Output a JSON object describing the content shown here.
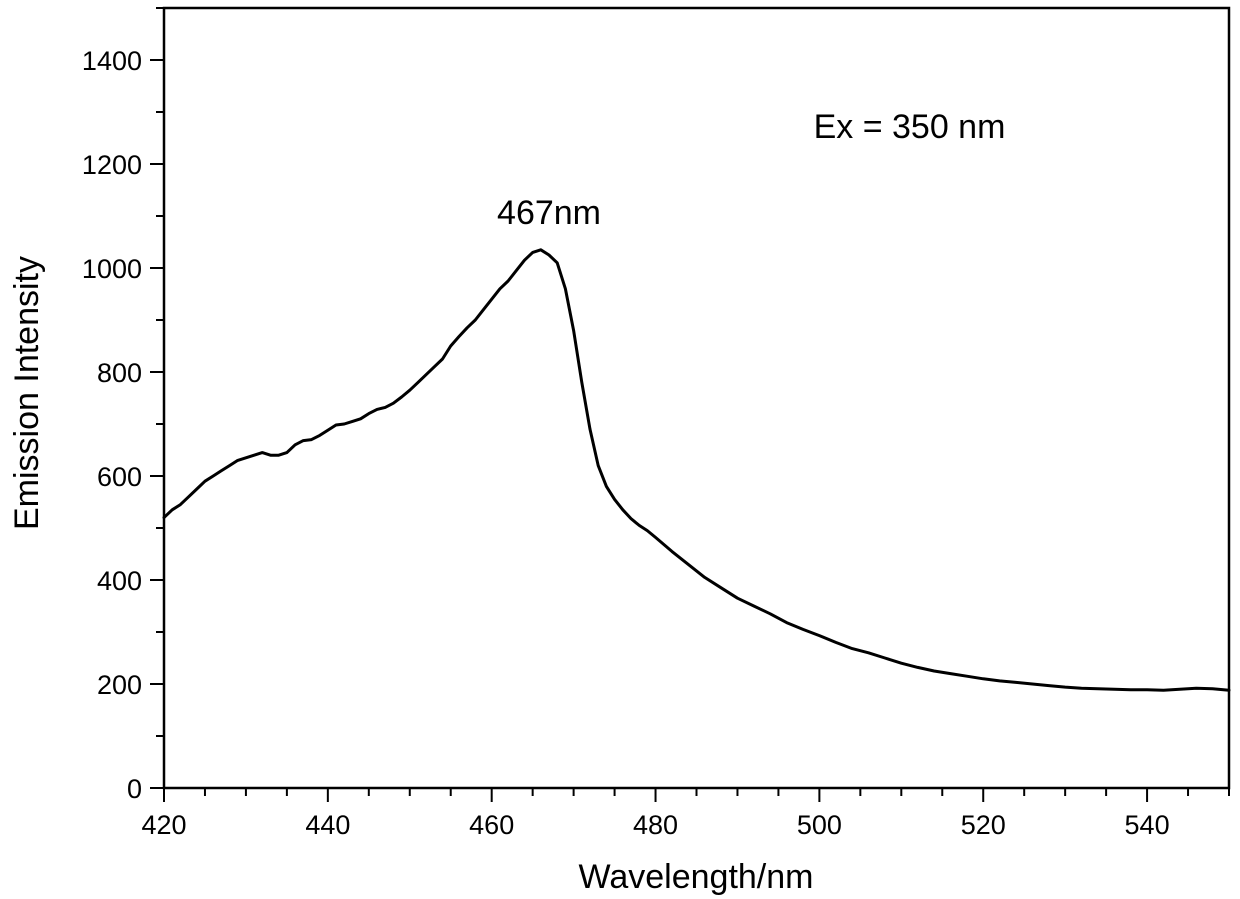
{
  "chart_data": {
    "type": "line",
    "title": "",
    "xlabel": "Wavelength/nm",
    "ylabel": "Emission Intensity",
    "xlim": [
      420,
      550
    ],
    "ylim": [
      0,
      1500
    ],
    "x_ticks": [
      420,
      440,
      460,
      480,
      500,
      520,
      540
    ],
    "x_minor_step": 5,
    "y_ticks": [
      0,
      200,
      400,
      600,
      800,
      1000,
      1200,
      1400
    ],
    "y_minor_step": 100,
    "grid": false,
    "legend": "none",
    "annotations": [
      {
        "text": "467nm",
        "x": 467,
        "y": 1085
      },
      {
        "text": "Ex = 350 nm",
        "x": 511,
        "y": 1250
      }
    ],
    "series": [
      {
        "name": "",
        "color": "#000000",
        "x": [
          420,
          421,
          422,
          423,
          424,
          425,
          426,
          427,
          428,
          429,
          430,
          431,
          432,
          433,
          434,
          435,
          436,
          437,
          438,
          439,
          440,
          441,
          442,
          443,
          444,
          445,
          446,
          447,
          448,
          449,
          450,
          451,
          452,
          453,
          454,
          455,
          456,
          457,
          458,
          459,
          460,
          461,
          462,
          463,
          464,
          465,
          466,
          467,
          468,
          469,
          470,
          471,
          472,
          473,
          474,
          475,
          476,
          477,
          478,
          479,
          480,
          482,
          484,
          486,
          488,
          490,
          492,
          494,
          496,
          498,
          500,
          502,
          504,
          506,
          508,
          510,
          512,
          514,
          516,
          518,
          520,
          522,
          524,
          526,
          528,
          530,
          532,
          534,
          536,
          538,
          540,
          542,
          544,
          546,
          548,
          550
        ],
        "y": [
          520,
          535,
          545,
          560,
          575,
          590,
          600,
          610,
          620,
          630,
          635,
          640,
          645,
          640,
          640,
          645,
          660,
          668,
          670,
          678,
          688,
          698,
          700,
          705,
          710,
          720,
          728,
          732,
          740,
          752,
          765,
          780,
          795,
          810,
          825,
          850,
          868,
          885,
          900,
          920,
          940,
          960,
          975,
          995,
          1015,
          1030,
          1035,
          1025,
          1010,
          960,
          880,
          780,
          690,
          620,
          580,
          555,
          535,
          518,
          505,
          495,
          482,
          455,
          430,
          405,
          385,
          365,
          350,
          335,
          318,
          305,
          293,
          280,
          268,
          260,
          250,
          240,
          232,
          225,
          220,
          215,
          210,
          206,
          203,
          200,
          197,
          194,
          192,
          191,
          190,
          189,
          189,
          188,
          190,
          192,
          191,
          188
        ]
      }
    ]
  }
}
